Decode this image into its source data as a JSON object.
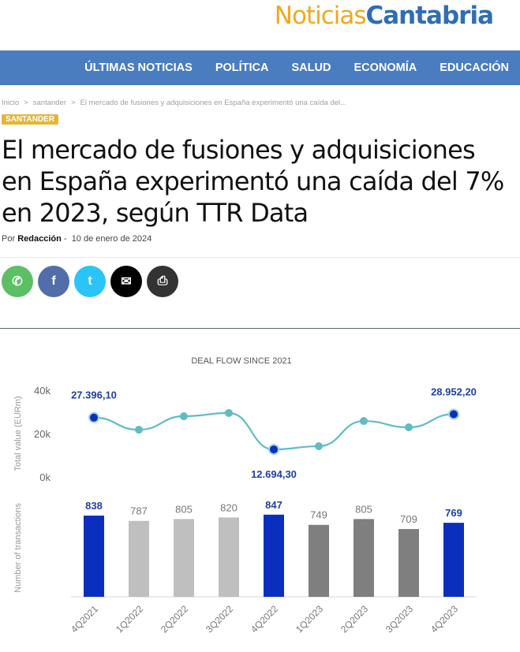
{
  "logo": {
    "part1": "Noticias",
    "part2": "Cantabria"
  },
  "nav": [
    "ÚLTIMAS NOTICIAS",
    "POLÍTICA",
    "SALUD",
    "ECONOMÍA",
    "EDUCACIÓN"
  ],
  "breadcrumb": [
    "Inicio",
    "santander",
    "El mercado de fusiones y adquisiciones en España experimentó una caída del..."
  ],
  "breadcrumb_sep": ">",
  "category": "SANTANDER",
  "title": "El mercado de fusiones y adquisiciones en España experimentó una caída del 7% en 2023, según TTR Data",
  "byline": {
    "por": "Por",
    "author": "Redacción",
    "sep": "-",
    "date": "10 de enero de 2024"
  },
  "share": [
    {
      "name": "whatsapp",
      "color": "#5cbf63",
      "glyph": "✆"
    },
    {
      "name": "facebook",
      "color": "#516eab",
      "glyph": "f"
    },
    {
      "name": "twitter",
      "color": "#29c5f6",
      "glyph": "t"
    },
    {
      "name": "email",
      "color": "#000000",
      "glyph": "✉"
    },
    {
      "name": "print",
      "color": "#333333",
      "glyph": "⎙"
    }
  ],
  "chart_data": {
    "title": "DEAL FLOW SINCE 2021",
    "type": "line+bar",
    "categories": [
      "4Q2021",
      "1Q2022",
      "2Q2022",
      "3Q2022",
      "4Q2022",
      "1Q2023",
      "2Q2023",
      "3Q2023",
      "4Q2023"
    ],
    "line": {
      "ylabel": "Total value (EURm)",
      "yticks": [
        "0k",
        "20k",
        "40k"
      ],
      "ylim": [
        0,
        40000
      ],
      "values": [
        27396.1,
        21800,
        28000,
        29500,
        12694.3,
        14200,
        25800,
        22900,
        28952.2
      ],
      "labels": [
        "27.396,10",
        "",
        "",
        "",
        "12.694,30",
        "",
        "",
        "",
        "28.952,20"
      ],
      "color": "#5fbcc4",
      "highlight": "#0a2fbf"
    },
    "bars": {
      "ylabel": "Number of transactions",
      "values": [
        838,
        787,
        805,
        820,
        847,
        749,
        805,
        709,
        769
      ],
      "labels": [
        "838",
        "787",
        "805",
        "820",
        "847",
        "749",
        "805",
        "709",
        "769"
      ],
      "colors": [
        "#0a2fbf",
        "#bfbfbf",
        "#bfbfbf",
        "#bfbfbf",
        "#0a2fbf",
        "#7f7f7f",
        "#7f7f7f",
        "#7f7f7f",
        "#0a2fbf"
      ]
    }
  }
}
